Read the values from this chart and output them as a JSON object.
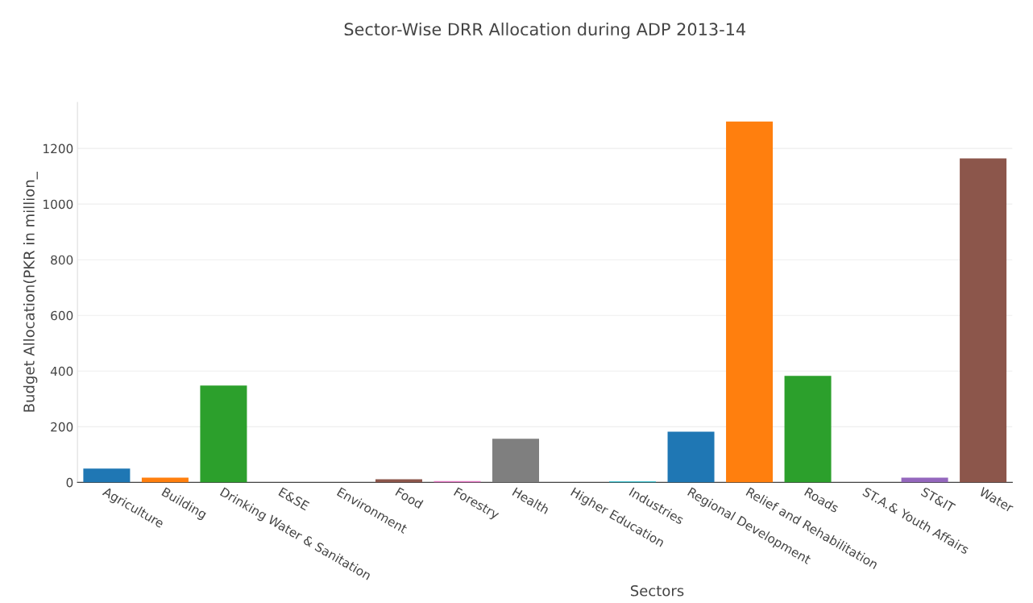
{
  "chart_data": {
    "type": "bar",
    "title": "Sector-Wise DRR Allocation during ADP 2013-14",
    "xlabel": "Sectors",
    "ylabel": "Budget Allocation(PKR in million_",
    "categories": [
      "Agriculture",
      "Building",
      "Drinking Water & Sanitation",
      "E&SE",
      "Environment",
      "Food",
      "Forestry",
      "Health",
      "Higher Education",
      "Industries",
      "Regional Development",
      "Relief and Rehabilitation",
      "Roads",
      "ST.A.& Youth Affairs",
      "ST&IT",
      "Water"
    ],
    "values": [
      50,
      17,
      348,
      null,
      null,
      11,
      5,
      157,
      null,
      3,
      182,
      1297,
      383,
      null,
      17,
      1164
    ],
    "colors": [
      "#1f77b4",
      "#ff7f0e",
      "#2ca02c",
      "#d62728",
      "#9467bd",
      "#8c564b",
      "#e377c2",
      "#7f7f7f",
      "#bcbd22",
      "#17becf",
      "#1f77b4",
      "#ff7f0e",
      "#2ca02c",
      "#d62728",
      "#9467bd",
      "#8c564b"
    ],
    "ylim": [
      0,
      1365
    ],
    "yticks": [
      0,
      200,
      400,
      600,
      800,
      1000,
      1200
    ],
    "grid": "y"
  }
}
